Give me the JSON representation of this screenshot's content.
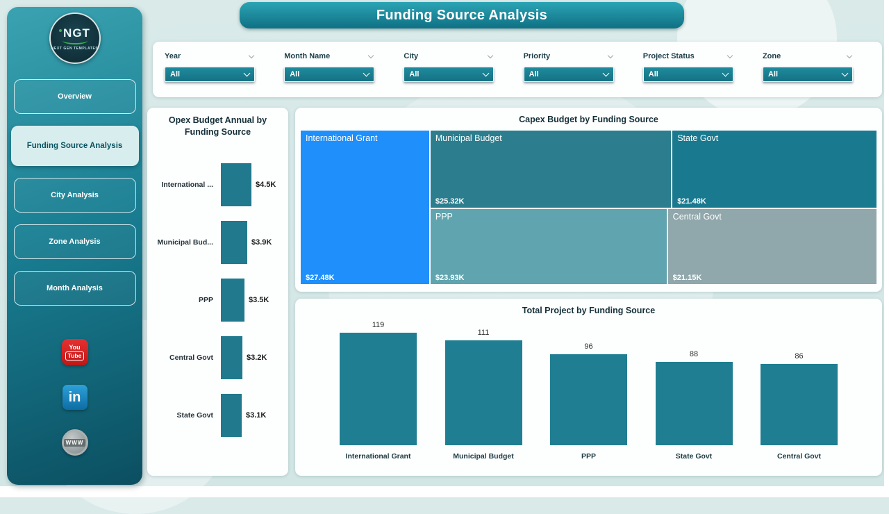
{
  "header": {
    "title": "Funding Source Analysis"
  },
  "sidebar": {
    "logo": {
      "title": "NGT",
      "subtitle": "NEXT GEN TEMPLATES"
    },
    "items": [
      {
        "label": "Overview",
        "active": false
      },
      {
        "label": "Funding Source Analysis",
        "active": true
      },
      {
        "label": "City Analysis",
        "active": false
      },
      {
        "label": "Zone Analysis",
        "active": false
      },
      {
        "label": "Month Analysis",
        "active": false
      }
    ],
    "social": {
      "youtube": {
        "line1": "You",
        "line2": "Tube"
      },
      "linkedin": {
        "label": "in"
      },
      "website": {
        "label": "www"
      }
    }
  },
  "filters": {
    "items": [
      {
        "label": "Year",
        "value": "All"
      },
      {
        "label": "Month Name",
        "value": "All"
      },
      {
        "label": "City",
        "value": "All"
      },
      {
        "label": "Priority",
        "value": "All"
      },
      {
        "label": "Project Status",
        "value": "All"
      },
      {
        "label": "Zone",
        "value": "All"
      }
    ]
  },
  "chart_data": [
    {
      "type": "bar",
      "orientation": "horizontal",
      "title": "Opex Budget Annual by Funding Source",
      "categories": [
        "International ...",
        "Municipal Bud...",
        "PPP",
        "Central Govt",
        "State Govt"
      ],
      "values": [
        4.5,
        3.9,
        3.5,
        3.2,
        3.1
      ],
      "value_labels": [
        "$4.5K",
        "$3.9K",
        "$3.5K",
        "$3.2K",
        "$3.1K"
      ],
      "bar_color": "#20798d"
    },
    {
      "type": "treemap",
      "title": "Capex Budget by Funding Source",
      "items": [
        {
          "name": "International Grant",
          "value": 27.48,
          "label": "$27.48K",
          "color": "#1e8ffb"
        },
        {
          "name": "Municipal Budget",
          "value": 25.32,
          "label": "$25.32K",
          "color": "#2c7d8e"
        },
        {
          "name": "State Govt",
          "value": 21.48,
          "label": "$21.48K",
          "color": "#19798f"
        },
        {
          "name": "PPP",
          "value": 23.93,
          "label": "$23.93K",
          "color": "#5fa4af"
        },
        {
          "name": "Central Govt",
          "value": 21.15,
          "label": "$21.15K",
          "color": "#90a7ab"
        }
      ]
    },
    {
      "type": "bar",
      "orientation": "vertical",
      "title": "Total Project by Funding Source",
      "categories": [
        "International Grant",
        "Municipal Budget",
        "PPP",
        "State Govt",
        "Central Govt"
      ],
      "values": [
        119,
        111,
        96,
        88,
        86
      ],
      "bar_color": "#1f7e91"
    }
  ]
}
